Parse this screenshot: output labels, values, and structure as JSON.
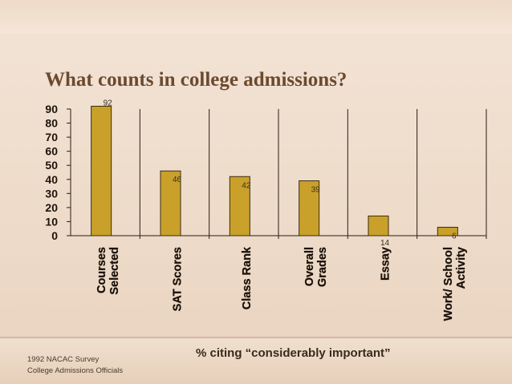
{
  "title": "What counts in college admissions?",
  "footer": {
    "line1": "1992 NACAC Survey",
    "line2": "College Admissions Officials"
  },
  "note": "% citing “considerably important”",
  "colors": {
    "bar": "#c9a12a",
    "bar_stroke": "#3a2a10",
    "title": "#6b4a2f"
  },
  "chart_data": {
    "type": "bar",
    "categories": [
      [
        "Courses",
        "Selected"
      ],
      [
        "SAT Scores"
      ],
      [
        "Class Rank"
      ],
      [
        "Overall",
        "Grades"
      ],
      [
        "Essay"
      ],
      [
        "Work/ School",
        "Activity"
      ]
    ],
    "values": [
      92,
      46,
      42,
      39,
      14,
      6
    ],
    "data_labels": [
      "92",
      "46",
      "42",
      "39",
      "14",
      "6"
    ],
    "yticks": [
      "0",
      "10",
      "20",
      "30",
      "40",
      "50",
      "60",
      "70",
      "80",
      "90"
    ],
    "ylim": [
      0,
      90
    ],
    "grid": false
  }
}
